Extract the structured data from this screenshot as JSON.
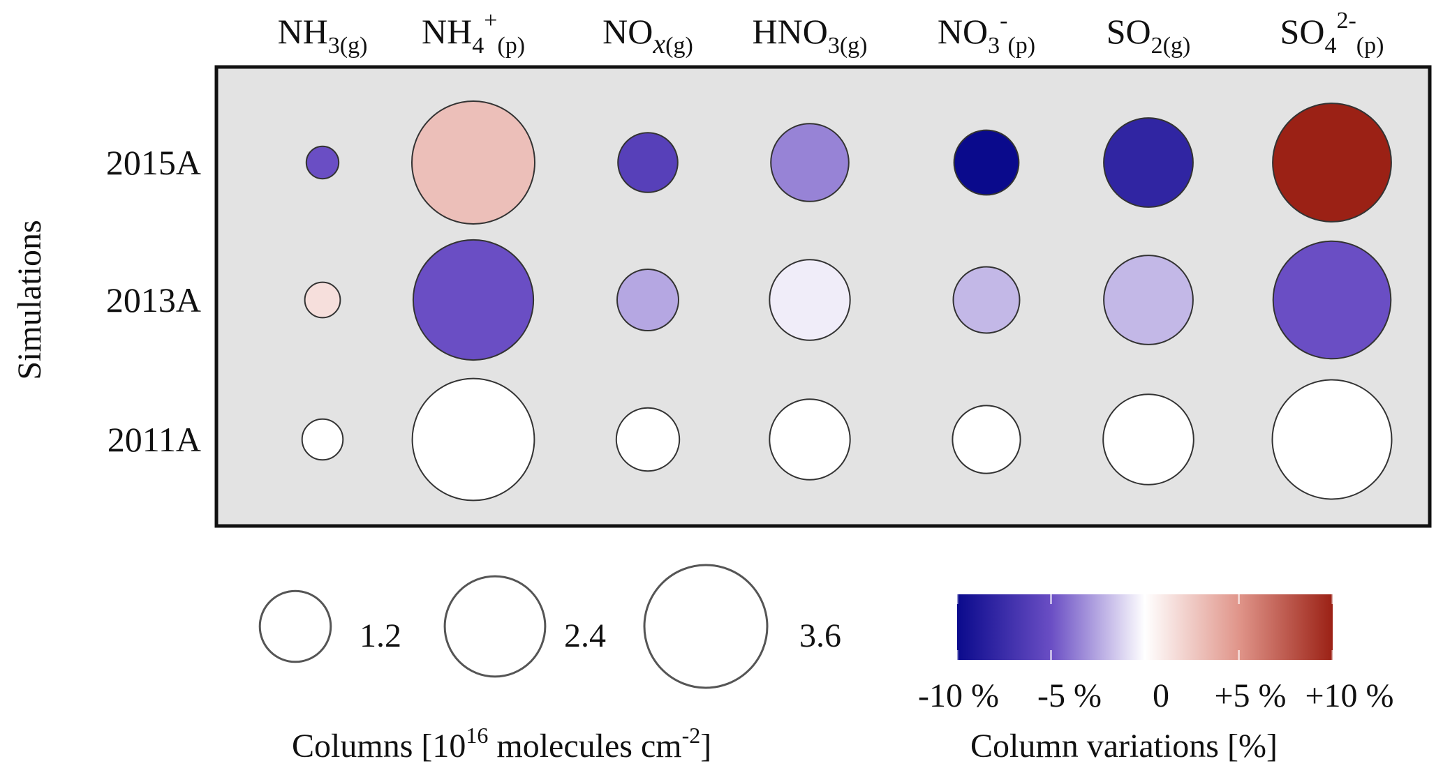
{
  "chart_data": {
    "type": "bubble-matrix",
    "species": [
      {
        "id": "nh3",
        "base": "NH",
        "sub1": "3",
        "sup": "",
        "sub2": "(g)",
        "subItalic": ""
      },
      {
        "id": "nh4",
        "base": "NH",
        "sub1": "4",
        "sup": "+",
        "sub2": "(p)",
        "subItalic": ""
      },
      {
        "id": "nox",
        "base": "NO",
        "sub1": "",
        "sup": "",
        "sub2": "(g)",
        "subItalic": "x"
      },
      {
        "id": "hno3",
        "base": "HNO",
        "sub1": "3",
        "sup": "",
        "sub2": "(g)",
        "subItalic": ""
      },
      {
        "id": "no3",
        "base": "NO",
        "sub1": "3",
        "sup": "-",
        "sub2": "(p)",
        "subItalic": ""
      },
      {
        "id": "so2",
        "base": "SO",
        "sub1": "2",
        "sup": "",
        "sub2": "(g)",
        "subItalic": ""
      },
      {
        "id": "so4",
        "base": "SO",
        "sub1": "4",
        "sup": "2-",
        "sub2": "(p)",
        "subItalic": ""
      }
    ],
    "simulations": [
      "2015A",
      "2013A",
      "2011A"
    ],
    "ylabel": "Simulations",
    "columns": [
      [
        0.25,
        3.6,
        0.85,
        1.45,
        1.0,
        1.9,
        3.35
      ],
      [
        0.3,
        3.45,
        0.9,
        1.55,
        1.05,
        1.9,
        3.3
      ],
      [
        0.4,
        3.55,
        0.95,
        1.55,
        1.1,
        1.95,
        3.4
      ]
    ],
    "variations_percent": [
      [
        -5,
        3,
        -6,
        -3.5,
        -10,
        -8,
        10
      ],
      [
        1.5,
        -5,
        -2.5,
        -0.5,
        -2,
        -2,
        -5
      ],
      [
        0,
        0,
        0,
        0,
        0,
        0,
        0
      ]
    ],
    "size_legend": {
      "values": [
        1.2,
        2.4,
        3.6
      ],
      "labels": [
        "1.2",
        "2.4",
        "3.6"
      ],
      "title_main": "Columns [10",
      "title_exp": "16",
      "title_unit": " molecules cm",
      "title_unit_exp": "-2",
      "title_close": "]"
    },
    "color_legend": {
      "ticks": [
        -10,
        -5,
        0,
        5,
        10
      ],
      "tick_labels": [
        "-10 %",
        "-5 %",
        "0",
        "+5 %",
        "+10 %"
      ],
      "title": "Column variations [%]",
      "range": [
        -10,
        10
      ],
      "colors": {
        "neg": "#0a0a8c",
        "mid": "#ffffff",
        "pos": "#9b2115"
      }
    },
    "panel_background": "#e3e3e3"
  }
}
